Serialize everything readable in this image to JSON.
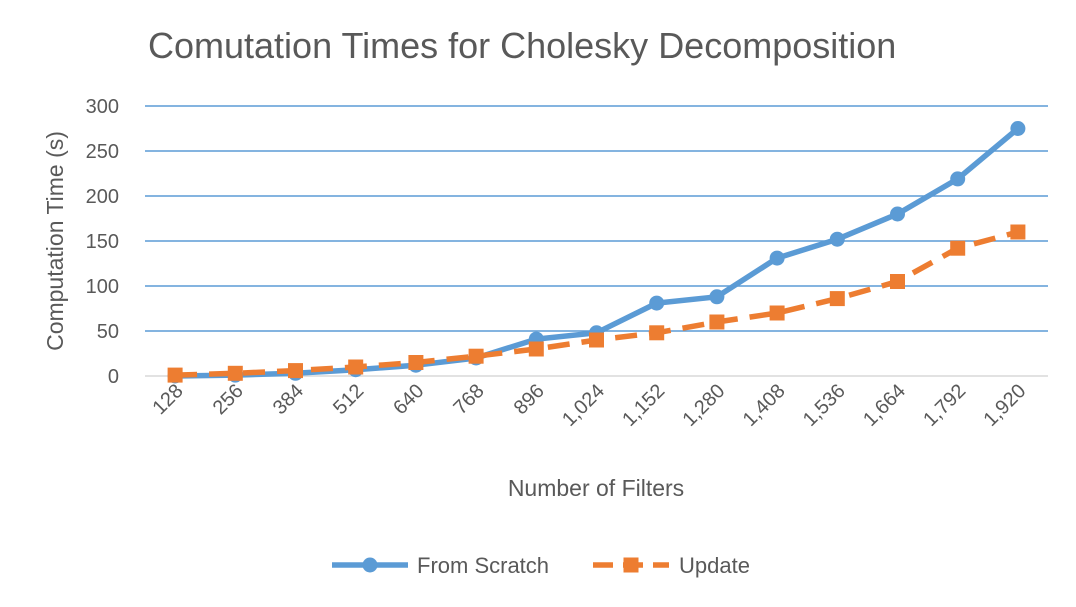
{
  "chart_data": {
    "type": "line",
    "title": "Comutation Times for Cholesky Decomposition",
    "xlabel": "Number of Filters",
    "ylabel": "Computation Time (s)",
    "categories": [
      "128",
      "256",
      "384",
      "512",
      "640",
      "768",
      "896",
      "1,024",
      "1,152",
      "1,280",
      "1,408",
      "1,536",
      "1,664",
      "1,792",
      "1,920"
    ],
    "ylim": [
      0,
      300
    ],
    "yticks": [
      0,
      50,
      100,
      150,
      200,
      250,
      300
    ],
    "grid": true,
    "legend_position": "bottom",
    "series": [
      {
        "name": "From Scratch",
        "color": "#5b9bd5",
        "line_style": "solid",
        "marker": "circle",
        "values": [
          0,
          1,
          3,
          7,
          12,
          20,
          41,
          48,
          81,
          88,
          131,
          152,
          180,
          219,
          275
        ]
      },
      {
        "name": "Update",
        "color": "#ed7d31",
        "line_style": "dashed",
        "marker": "square",
        "values": [
          1,
          3,
          6,
          10,
          15,
          22,
          30,
          40,
          48,
          60,
          70,
          86,
          105,
          142,
          160
        ]
      }
    ],
    "colors": {
      "grid": "#5b9bd5",
      "axis": "#d9d9d9",
      "text": "#595959"
    }
  }
}
